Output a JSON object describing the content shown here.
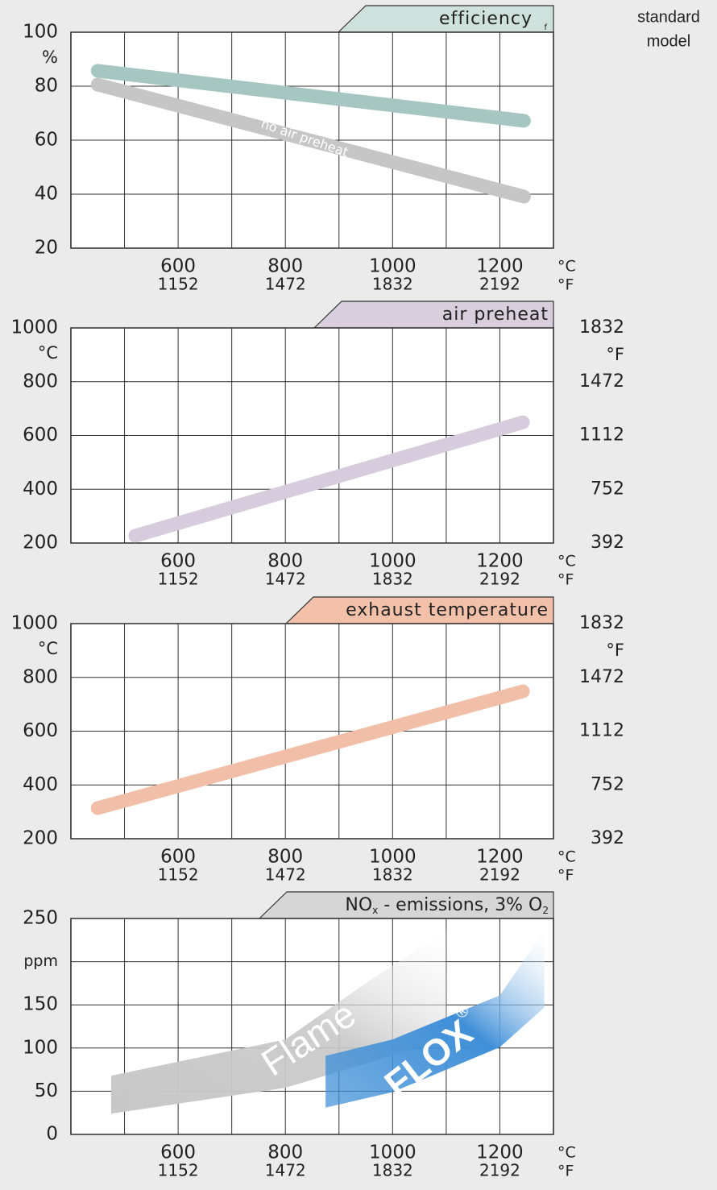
{
  "header": {
    "lines": [
      "standard",
      "model"
    ]
  },
  "chart_data": [
    {
      "type": "line",
      "title": "efficiency",
      "title_note": "f",
      "tab_color": "#cfe1dc",
      "xlim": [
        400,
        1300
      ],
      "xticks": [
        600,
        800,
        1000,
        1200
      ],
      "x_minor_ticks": [
        500,
        700,
        900,
        1100
      ],
      "x2ticks": [
        1152,
        1472,
        1832,
        2192
      ],
      "x_unit": "°C",
      "x2_unit": "°F",
      "ylim": [
        20,
        100
      ],
      "yticks": [
        20,
        40,
        60,
        80,
        100
      ],
      "y_unit": "%",
      "grid": true,
      "series": [
        {
          "color": "#a6c6c1",
          "x": [
            450,
            1245
          ],
          "values": [
            85.7,
            67.2
          ]
        },
        {
          "name": "no air preheat",
          "color": "#c6c6c6",
          "x": [
            450,
            1245
          ],
          "values": [
            80.6,
            39.1
          ]
        }
      ]
    },
    {
      "type": "line",
      "title": "air preheat",
      "tab_color": "#d9cfdc",
      "xlim": [
        400,
        1300
      ],
      "xticks": [
        600,
        800,
        1000,
        1200
      ],
      "x_minor_ticks": [
        500,
        700,
        900,
        1100
      ],
      "x2ticks": [
        1152,
        1472,
        1832,
        2192
      ],
      "x_unit": "°C",
      "x2_unit": "°F",
      "ylim": [
        200,
        1000
      ],
      "yticks": [
        200,
        400,
        600,
        800,
        1000
      ],
      "y_unit": "°C",
      "y2lim": [
        392,
        1832
      ],
      "y2ticks": [
        392,
        752,
        1112,
        1472,
        1832
      ],
      "y2_unit": "°F",
      "grid": true,
      "series": [
        {
          "color": "#d6ccdd",
          "x": [
            520,
            1243
          ],
          "values": [
            227,
            649
          ]
        }
      ]
    },
    {
      "type": "line",
      "title": "exhaust temperature",
      "tab_color": "#f3c0a9",
      "xlim": [
        400,
        1300
      ],
      "xticks": [
        600,
        800,
        1000,
        1200
      ],
      "x_minor_ticks": [
        500,
        700,
        900,
        1100
      ],
      "x2ticks": [
        1152,
        1472,
        1832,
        2192
      ],
      "x_unit": "°C",
      "x2_unit": "°F",
      "ylim": [
        200,
        1000
      ],
      "yticks": [
        200,
        400,
        600,
        800,
        1000
      ],
      "y_unit": "°C",
      "y2lim": [
        392,
        1832
      ],
      "y2ticks": [
        392,
        752,
        1112,
        1472,
        1832
      ],
      "y2_unit": "°F",
      "grid": true,
      "series": [
        {
          "color": "#f1bfa7",
          "x": [
            450,
            1243
          ],
          "values": [
            314,
            748
          ]
        }
      ]
    },
    {
      "type": "band",
      "title": [
        {
          "text": "NO"
        },
        {
          "text": "x",
          "sub": true
        },
        {
          "text": " - emissions, 3% O"
        },
        {
          "text": "2",
          "sub": true
        }
      ],
      "tab_color": "#d6d6d6",
      "xlim": [
        400,
        1300
      ],
      "xticks": [
        600,
        800,
        1000,
        1200
      ],
      "x_minor_ticks": [
        500,
        700,
        900,
        1100
      ],
      "x2ticks": [
        1152,
        1472,
        1832,
        2192
      ],
      "x_unit": "°C",
      "x2_unit": "°F",
      "ylim": [
        0,
        250
      ],
      "yticks": [
        0,
        50,
        100,
        150,
        {
          "value": 200,
          "label": "ppm"
        },
        250
      ],
      "grid": true,
      "series": [
        {
          "name": "Flame",
          "color": "#c8c8c8",
          "x": [
            475,
            800,
            950,
            1100
          ],
          "low": [
            24,
            54,
            82,
            110
          ],
          "high": [
            68,
            110,
            175,
            236
          ]
        },
        {
          "name": "FLOX",
          "name_sup": "®",
          "color": "#3f8fd8",
          "x": [
            875,
            1000,
            1200,
            1283
          ],
          "low": [
            31,
            49,
            101,
            147
          ],
          "high": [
            91,
            110,
            161,
            236
          ]
        }
      ]
    }
  ]
}
